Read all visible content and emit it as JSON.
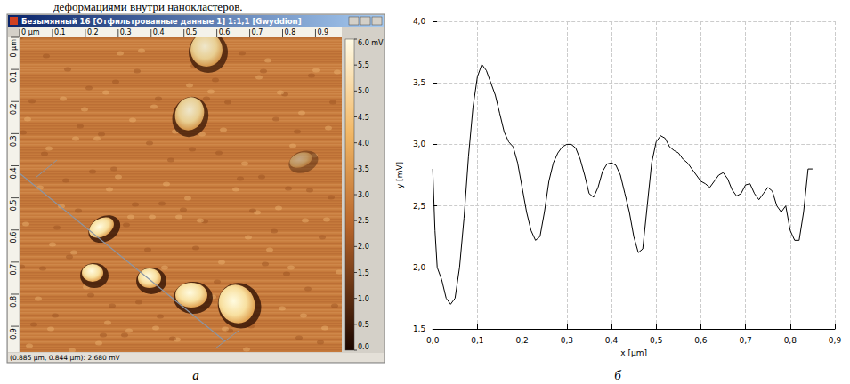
{
  "caption_fragment": "деформациями внутри нанокластеров.",
  "panel_labels": [
    "а",
    "б"
  ],
  "afm_window": {
    "title": "Безымянный 16 [Отфильтрованные данные 1] 1:1,1 [Gwyddion]",
    "ruler": {
      "xlim": [
        0,
        0.98
      ],
      "ticks": [
        {
          "value": 0,
          "label": "0 µm"
        },
        0.1,
        0.2,
        0.3,
        0.4,
        0.5,
        0.6,
        0.7,
        0.8,
        0.9
      ]
    },
    "colorbar": {
      "range": [
        0,
        6
      ],
      "ticks": [
        {
          "value": 6,
          "label": "6.0 mV"
        },
        5.5,
        {
          "value": 5,
          "label": "5.0"
        },
        4.5,
        {
          "value": 4,
          "label": "4.0"
        },
        3.5,
        {
          "value": 3,
          "label": "3.0"
        },
        2.5,
        {
          "value": 2,
          "label": "2.0"
        },
        1.5,
        {
          "value": 1,
          "label": "1.0"
        },
        0.5,
        {
          "value": 0,
          "label": "0.0"
        }
      ]
    },
    "status": "(0.885 µm, 0.844 µm): 2.680 mV"
  },
  "chart_data": {
    "type": "line",
    "x_label": "x [µm]",
    "y_label": "y [mV]",
    "color": "#000000",
    "grid": true,
    "x": [
      0,
      0.005,
      0.01,
      0.02,
      0.03,
      0.04,
      0.05,
      0.06,
      0.07,
      0.08,
      0.09,
      0.1,
      0.11,
      0.12,
      0.13,
      0.14,
      0.15,
      0.16,
      0.17,
      0.18,
      0.19,
      0.2,
      0.21,
      0.22,
      0.23,
      0.24,
      0.25,
      0.26,
      0.27,
      0.28,
      0.29,
      0.3,
      0.31,
      0.32,
      0.33,
      0.34,
      0.35,
      0.36,
      0.37,
      0.38,
      0.39,
      0.4,
      0.41,
      0.42,
      0.43,
      0.44,
      0.45,
      0.46,
      0.47,
      0.48,
      0.49,
      0.5,
      0.51,
      0.52,
      0.53,
      0.54,
      0.55,
      0.56,
      0.57,
      0.58,
      0.59,
      0.6,
      0.61,
      0.62,
      0.63,
      0.64,
      0.65,
      0.66,
      0.67,
      0.68,
      0.69,
      0.7,
      0.71,
      0.72,
      0.73,
      0.74,
      0.75,
      0.76,
      0.77,
      0.78,
      0.79,
      0.8,
      0.81,
      0.82,
      0.83,
      0.84,
      0.85
    ],
    "values": [
      2.8,
      2.3,
      2.0,
      1.9,
      1.75,
      1.7,
      1.75,
      2.0,
      2.4,
      2.9,
      3.3,
      3.55,
      3.65,
      3.6,
      3.5,
      3.4,
      3.25,
      3.1,
      3.02,
      2.98,
      2.85,
      2.65,
      2.45,
      2.3,
      2.22,
      2.25,
      2.45,
      2.7,
      2.85,
      2.93,
      2.98,
      3.0,
      3.0,
      2.97,
      2.88,
      2.75,
      2.6,
      2.57,
      2.65,
      2.78,
      2.84,
      2.85,
      2.83,
      2.75,
      2.6,
      2.45,
      2.25,
      2.12,
      2.15,
      2.5,
      2.85,
      3.02,
      3.07,
      3.05,
      2.98,
      2.95,
      2.93,
      2.88,
      2.85,
      2.8,
      2.75,
      2.7,
      2.68,
      2.65,
      2.7,
      2.75,
      2.77,
      2.72,
      2.63,
      2.58,
      2.6,
      2.67,
      2.68,
      2.6,
      2.55,
      2.6,
      2.65,
      2.62,
      2.5,
      2.45,
      2.5,
      2.3,
      2.22,
      2.22,
      2.45,
      2.8,
      2.8
    ],
    "xlim": [
      0,
      0.9
    ],
    "xticks": [
      {
        "value": 0,
        "label": "0,0"
      },
      {
        "value": 0.1,
        "label": "0,1"
      },
      {
        "value": 0.2,
        "label": "0,2"
      },
      {
        "value": 0.3,
        "label": "0,3"
      },
      {
        "value": 0.4,
        "label": "0,4"
      },
      {
        "value": 0.5,
        "label": "0,5"
      },
      {
        "value": 0.6,
        "label": "0,6"
      },
      {
        "value": 0.7,
        "label": "0,7"
      },
      {
        "value": 0.8,
        "label": "0,8"
      },
      {
        "value": 0.9,
        "label": "0,9"
      }
    ],
    "ylim": [
      1.5,
      4.0
    ],
    "yticks": [
      {
        "value": 1.5,
        "label": "1,5"
      },
      {
        "value": 2.0,
        "label": "2,0"
      },
      {
        "value": 2.5,
        "label": "2,5"
      },
      {
        "value": 3.0,
        "label": "3,0"
      },
      {
        "value": 3.5,
        "label": "3,5"
      },
      {
        "value": 4.0,
        "label": "4,0"
      }
    ]
  }
}
